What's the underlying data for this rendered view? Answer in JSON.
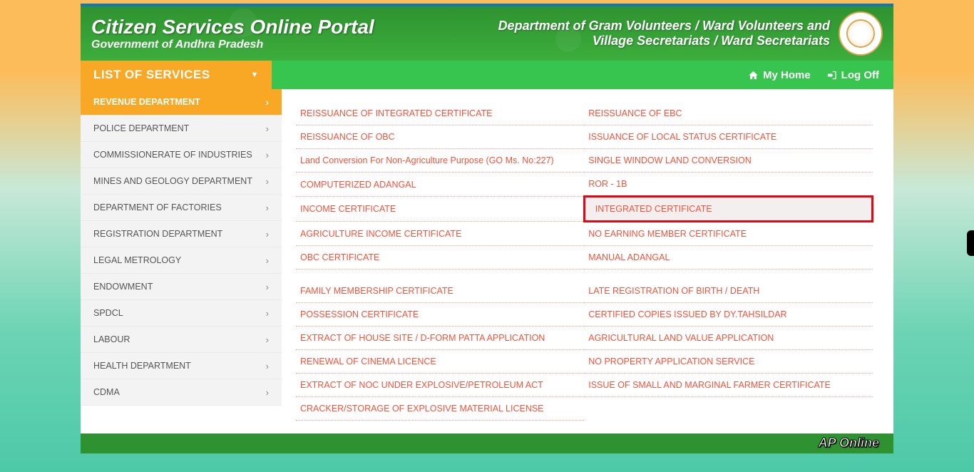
{
  "header": {
    "title": "Citizen Services Online Portal",
    "subtitle": "Government of Andhra Pradesh",
    "dept_line1": "Department of Gram Volunteers / Ward Volunteers and",
    "dept_line2": "Village Secretariats / Ward Secretariats"
  },
  "topnav": {
    "list_label": "LIST OF SERVICES",
    "myhome": "My Home",
    "logoff": "Log Off"
  },
  "sidebar": {
    "items": [
      {
        "label": "REVENUE DEPARTMENT",
        "active": true
      },
      {
        "label": "POLICE DEPARTMENT",
        "active": false
      },
      {
        "label": "COMMISSIONERATE OF INDUSTRIES",
        "active": false
      },
      {
        "label": "MINES AND GEOLOGY DEPARTMENT",
        "active": false
      },
      {
        "label": "DEPARTMENT OF FACTORIES",
        "active": false
      },
      {
        "label": "REGISTRATION DEPARTMENT",
        "active": false
      },
      {
        "label": "LEGAL METROLOGY",
        "active": false
      },
      {
        "label": "ENDOWMENT",
        "active": false
      },
      {
        "label": "SPDCL",
        "active": false
      },
      {
        "label": "LABOUR",
        "active": false
      },
      {
        "label": "HEALTH DEPARTMENT",
        "active": false
      },
      {
        "label": "CDMA",
        "active": false
      }
    ]
  },
  "services": {
    "groups": [
      [
        {
          "left": "REISSUANCE OF INTEGRATED CERTIFICATE",
          "right": "REISSUANCE OF EBC"
        },
        {
          "left": "REISSUANCE OF OBC",
          "right": "ISSUANCE OF LOCAL STATUS CERTIFICATE"
        },
        {
          "left": "Land Conversion For Non-Agriculture Purpose (GO Ms. No:227)",
          "right": "SINGLE WINDOW LAND CONVERSION"
        },
        {
          "left": "COMPUTERIZED ADANGAL",
          "right": "ROR - 1B"
        },
        {
          "left": "INCOME CERTIFICATE",
          "right": "INTEGRATED CERTIFICATE",
          "right_highlight": true
        },
        {
          "left": "AGRICULTURE INCOME CERTIFICATE",
          "right": "NO EARNING MEMBER CERTIFICATE"
        },
        {
          "left": "OBC CERTIFICATE",
          "right": "MANUAL ADANGAL"
        }
      ],
      [
        {
          "left": "FAMILY MEMBERSHIP CERTIFICATE",
          "right": "LATE REGISTRATION OF BIRTH / DEATH"
        },
        {
          "left": "POSSESSION CERTIFICATE",
          "right": "CERTIFIED COPIES ISSUED BY DY.TAHSILDAR"
        },
        {
          "left": "EXTRACT OF HOUSE SITE / D-FORM PATTA APPLICATION",
          "right": "AGRICULTURAL LAND VALUE APPLICATION"
        },
        {
          "left": "RENEWAL OF CINEMA LICENCE",
          "right": "NO PROPERTY APPLICATION SERVICE"
        },
        {
          "left": "EXTRACT OF NOC UNDER EXPLOSIVE/PETROLEUM ACT",
          "right": "ISSUE OF SMALL AND MARGINAL FARMER CERTIFICATE"
        },
        {
          "left": "CRACKER/STORAGE OF EXPLOSIVE MATERIAL LICENSE",
          "right": ""
        }
      ]
    ]
  },
  "footer": {
    "brand": "AP Online"
  },
  "colors": {
    "accent_orange": "#f9a825",
    "green_header": "#3aa23a",
    "green_nav": "#37c54f",
    "link_red": "#f0543c",
    "highlight_border": "#e30613"
  }
}
